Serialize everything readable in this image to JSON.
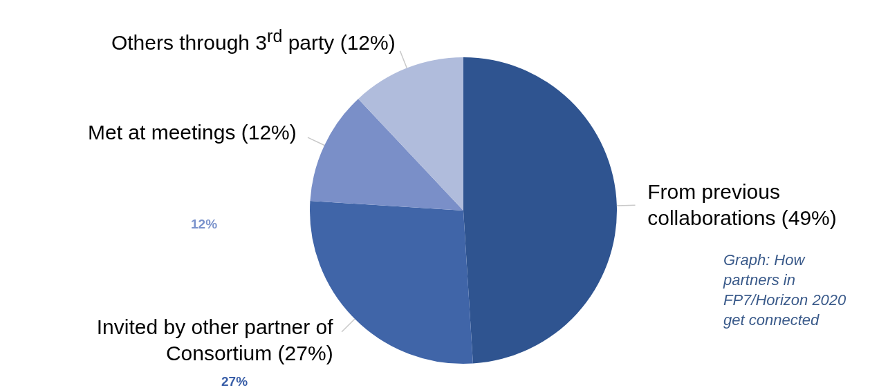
{
  "chart_data": {
    "type": "pie",
    "categories": [
      "From previous collaborations  (49%)",
      "Invited by other partner of Consortium (27%)",
      "Met at meetings (12%)",
      "Others through 3$^{rd}$ party (12%)"
    ],
    "values": [
      49,
      27,
      12,
      12
    ],
    "colors": [
      "#2f5490",
      "#4065a8",
      "#7a8fc8",
      "#b0bcdc"
    ],
    "legend": false,
    "annotations": [
      "12%",
      "27%",
      "Graph: How partners in FP7/Horizon 2020 get connected"
    ]
  }
}
